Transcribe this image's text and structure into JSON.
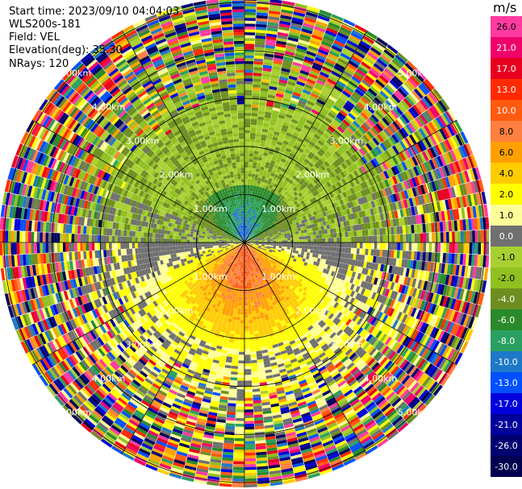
{
  "header": {
    "start_time": "Start time: 2023/09/10 04:04:03",
    "site": "WLS200s-181",
    "field": "Field: VEL",
    "elevation": "Elevation(deg): 35.30",
    "nrays": "NRays: 120"
  },
  "colorbar": {
    "unit": "m/s",
    "labels": [
      "26.0",
      "21.0",
      "17.0",
      "13.0",
      "10.0",
      "8.0",
      "6.0",
      "4.0",
      "2.0",
      "1.0",
      "0.0",
      "-1.0",
      "-2.0",
      "-4.0",
      "-6.0",
      "-8.0",
      "-10.0",
      "-13.0",
      "-17.0",
      "-21.0",
      "-26.0",
      "-30.0"
    ],
    "colors": [
      "#ff3aa0",
      "#f0006a",
      "#e8001e",
      "#ff2a00",
      "#ff5a10",
      "#ff8040",
      "#ffa000",
      "#ffcc00",
      "#ffff00",
      "#ffff99",
      "#707070",
      "#a8d030",
      "#90c020",
      "#6e8e20",
      "#2a8a2a",
      "#2aa060",
      "#1e78c8",
      "#0050ff",
      "#0000dc",
      "#00009c",
      "#000070",
      "#000050"
    ]
  },
  "chart_data": {
    "type": "ppi",
    "field": "VEL",
    "units": "m/s",
    "elevation_deg": 35.3,
    "n_rays": 120,
    "range_rings_km": [
      1,
      2,
      3,
      4,
      5
    ],
    "ring_labels": [
      "1.00km",
      "2.00km",
      "3.00km",
      "4.00km",
      "5.00km"
    ],
    "color_levels": [
      -30,
      -26,
      -21,
      -17,
      -13,
      -10,
      -8,
      -6,
      -4,
      -2,
      -1,
      0,
      1,
      2,
      4,
      6,
      8,
      10,
      13,
      17,
      21,
      26
    ],
    "velocity_pattern": "negative (toward) to the north near center, positive (away) to the south near center, noisy beyond ~3 km"
  }
}
